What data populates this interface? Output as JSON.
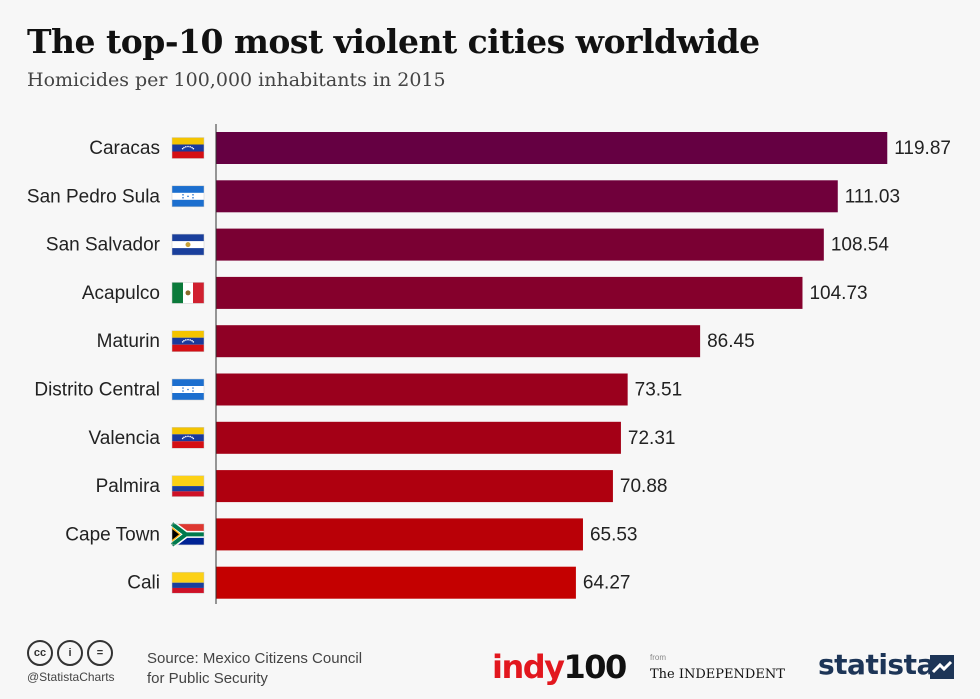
{
  "header": {
    "title": "The top-10 most violent cities worldwide",
    "subtitle": "Homicides per 100,000 inhabitants in 2015"
  },
  "chart_data": {
    "type": "bar",
    "orientation": "horizontal",
    "categories": [
      "Caracas",
      "San Pedro Sula",
      "San Salvador",
      "Acapulco",
      "Maturin",
      "Distrito Central",
      "Valencia",
      "Palmira",
      "Cape Town",
      "Cali"
    ],
    "values": [
      119.87,
      111.03,
      108.54,
      104.73,
      86.45,
      73.51,
      72.31,
      70.88,
      65.53,
      64.27
    ],
    "value_labels": [
      "119.87",
      "111.03",
      "108.54",
      "104.73",
      "86.45",
      "73.51",
      "72.31",
      "70.88",
      "65.53",
      "64.27"
    ],
    "flags": [
      "venezuela",
      "honduras",
      "el-salvador",
      "mexico",
      "venezuela",
      "honduras",
      "venezuela",
      "colombia",
      "south-africa",
      "colombia"
    ],
    "xlim": [
      0,
      120
    ],
    "grid": false,
    "colors": {
      "start": "#650042",
      "end": "#c40000"
    }
  },
  "footer": {
    "cc_icons": [
      "cc",
      "i",
      "="
    ],
    "handle": "@StatistaCharts",
    "source_line1": "Source: Mexico Citizens Council",
    "source_line2": "for Public Security",
    "indy_text": "indy",
    "indy_number": "100",
    "from_text": "from",
    "independent": "The INDEPENDENT",
    "statista": "statista"
  }
}
